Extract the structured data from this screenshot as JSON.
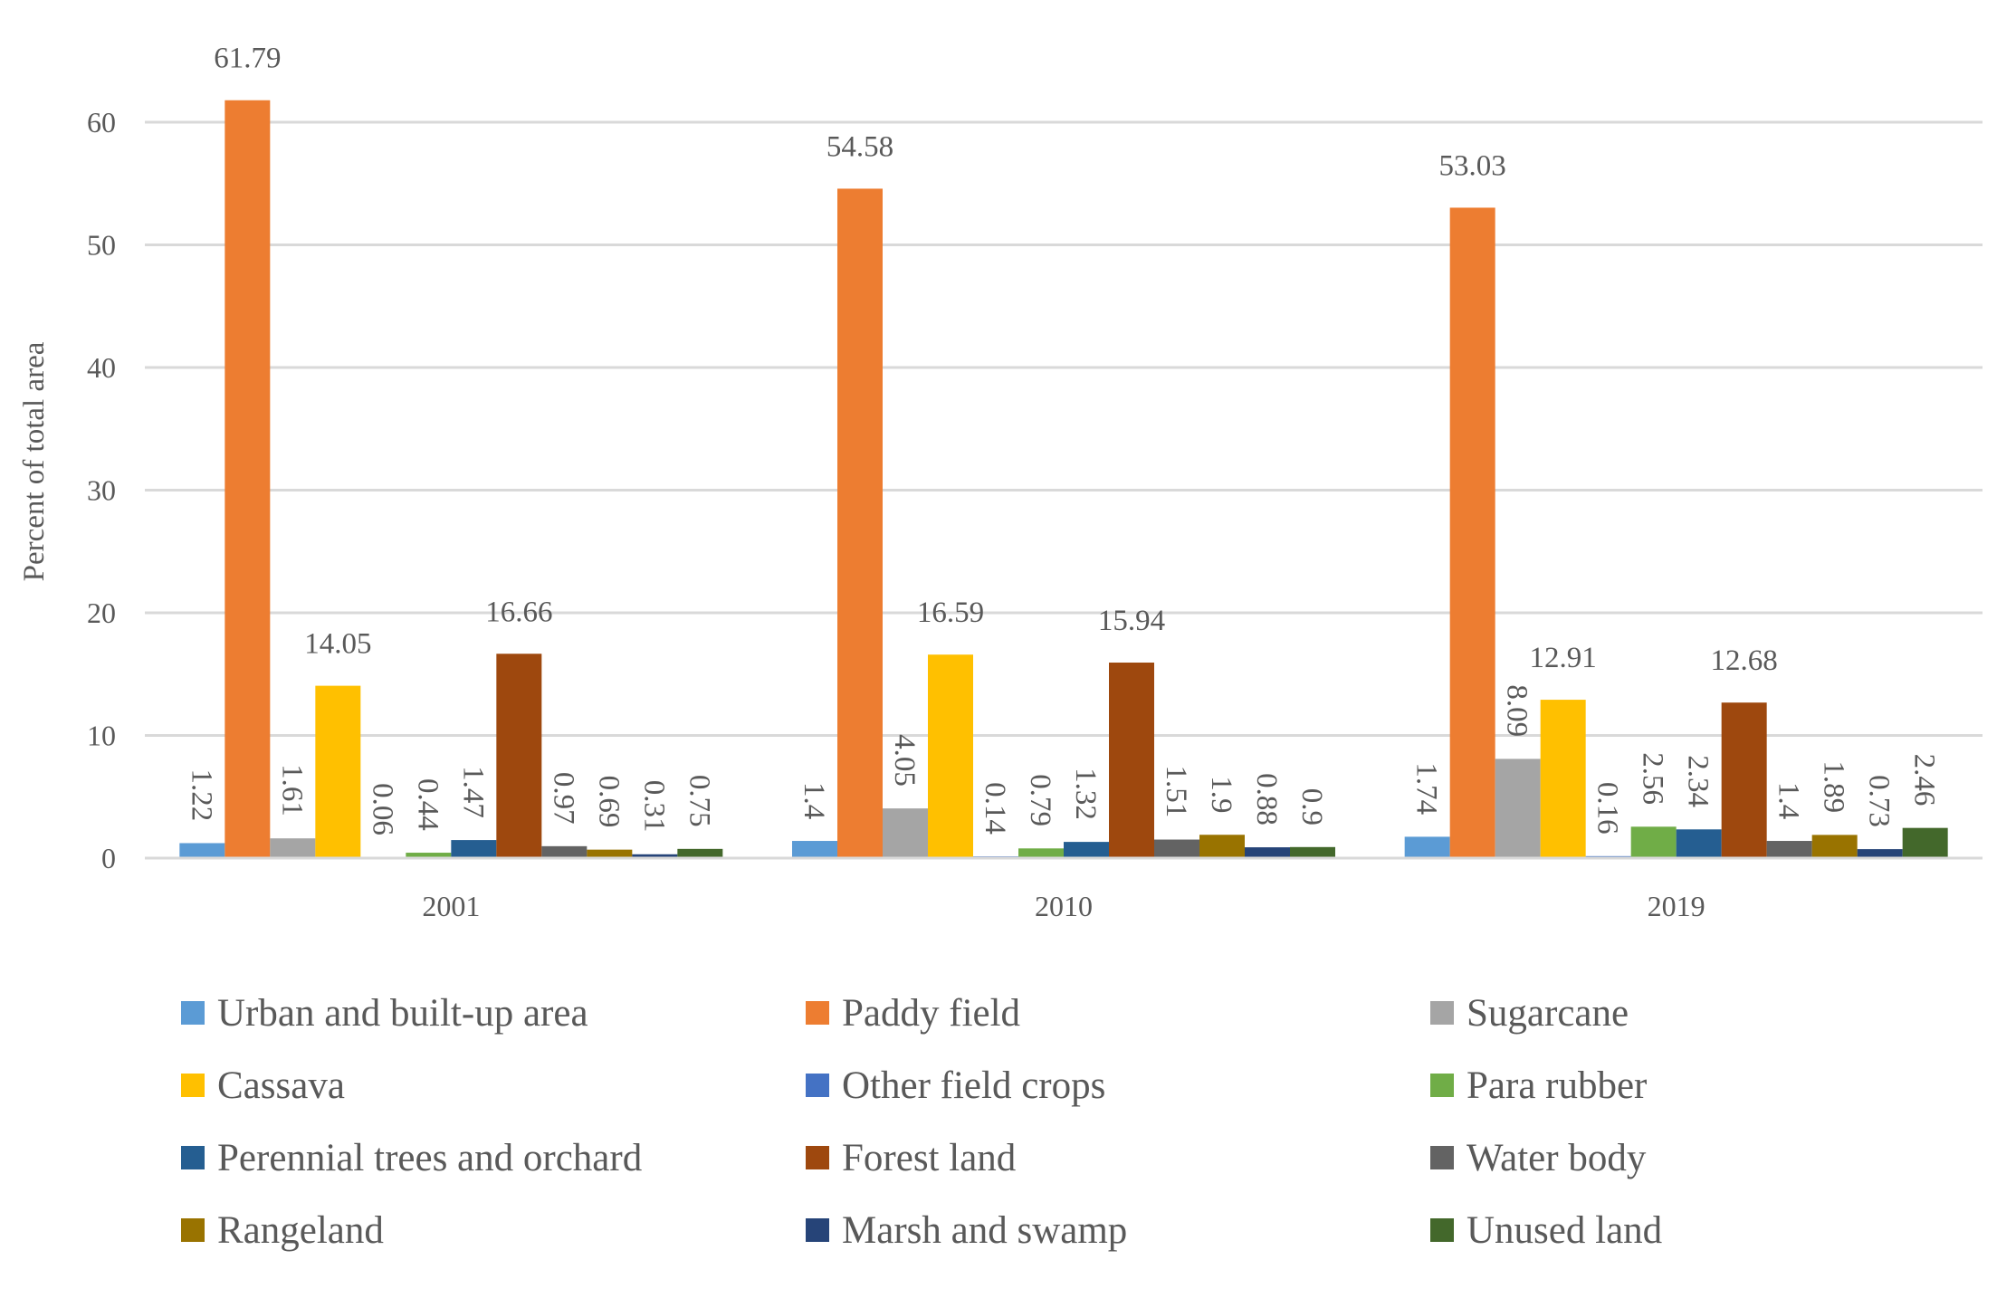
{
  "chart_data": {
    "type": "bar",
    "title": "",
    "xlabel": "",
    "ylabel": "Percent of total area",
    "ylim": [
      0,
      60
    ],
    "y_ticks": [
      0,
      10,
      20,
      30,
      40,
      50,
      60
    ],
    "grid": true,
    "legend_position": "bottom",
    "categories": [
      "2001",
      "2010",
      "2019"
    ],
    "series": [
      {
        "name": "Urban and built-up area",
        "color": "#5b9bd5",
        "values": [
          1.22,
          1.4,
          1.74
        ],
        "labels": [
          "1.22",
          "1.4",
          "1.74"
        ]
      },
      {
        "name": "Paddy field",
        "color": "#ed7d31",
        "values": [
          61.79,
          54.58,
          53.03
        ],
        "labels": [
          "61.79",
          "54.58",
          "53.03"
        ]
      },
      {
        "name": "Sugarcane",
        "color": "#a5a5a5",
        "values": [
          1.61,
          4.05,
          8.09
        ],
        "labels": [
          "1.61",
          "4.05",
          "8.09"
        ]
      },
      {
        "name": "Cassava",
        "color": "#ffc000",
        "values": [
          14.05,
          16.59,
          12.91
        ],
        "labels": [
          "14.05",
          "16.59",
          "12.91"
        ]
      },
      {
        "name": "Other field crops",
        "color": "#4472c4",
        "values": [
          0.06,
          0.14,
          0.16
        ],
        "labels": [
          "0.06",
          "0.14",
          "0.16"
        ]
      },
      {
        "name": "Para rubber",
        "color": "#70ad47",
        "values": [
          0.44,
          0.79,
          2.56
        ],
        "labels": [
          "0.44",
          "0.79",
          "2.56"
        ]
      },
      {
        "name": "Perennial trees and orchard",
        "color": "#255e91",
        "values": [
          1.47,
          1.32,
          2.34
        ],
        "labels": [
          "1.47",
          "1.32",
          "2.34"
        ]
      },
      {
        "name": "Forest land",
        "color": "#9e480e",
        "values": [
          16.66,
          15.94,
          12.68
        ],
        "labels": [
          "16.66",
          "15.94",
          "12.68"
        ]
      },
      {
        "name": "Water body",
        "color": "#636363",
        "values": [
          0.97,
          1.51,
          1.4
        ],
        "labels": [
          "0.97",
          "1.51",
          "1.4"
        ]
      },
      {
        "name": "Rangeland",
        "color": "#997300",
        "values": [
          0.69,
          1.9,
          1.89
        ],
        "labels": [
          "0.69",
          "1.9",
          "1.89"
        ]
      },
      {
        "name": "Marsh and swamp",
        "color": "#264478",
        "values": [
          0.31,
          0.88,
          0.73
        ],
        "labels": [
          "0.31",
          "0.88",
          "0.73"
        ]
      },
      {
        "name": "Unused land",
        "color": "#43682b",
        "values": [
          0.75,
          0.9,
          2.46
        ],
        "labels": [
          "0.75",
          "0.9",
          "2.46"
        ]
      }
    ]
  }
}
